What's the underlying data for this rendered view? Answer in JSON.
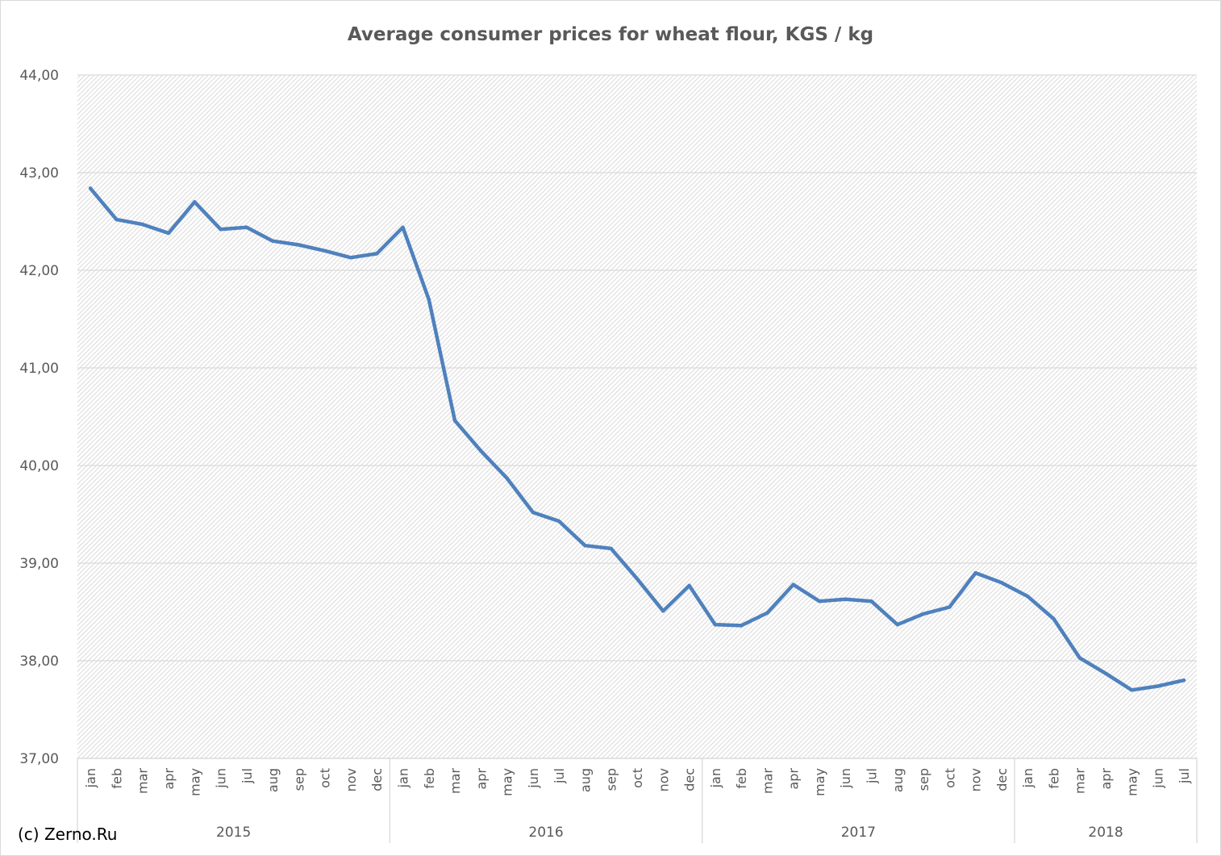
{
  "credit": "(c) Zerno.Ru",
  "colors": {
    "line": "#4f81bd",
    "text": "#595959",
    "grid": "#d9d9d9",
    "hatch": "#d0d0d0"
  },
  "chart_data": {
    "type": "line",
    "title": "Average consumer prices for wheat flour, KGS / kg",
    "xlabel": "",
    "ylabel": "",
    "ylim": [
      37,
      44
    ],
    "y_ticks": [
      "37,00",
      "38,00",
      "39,00",
      "40,00",
      "41,00",
      "42,00",
      "43,00",
      "44,00"
    ],
    "grid": true,
    "legend": "none",
    "years": [
      {
        "label": "2015",
        "months": [
          "jan",
          "feb",
          "mar",
          "apr",
          "may",
          "jun",
          "jul",
          "aug",
          "sep",
          "oct",
          "nov",
          "dec"
        ]
      },
      {
        "label": "2016",
        "months": [
          "jan",
          "feb",
          "mar",
          "apr",
          "may",
          "jun",
          "jul",
          "aug",
          "sep",
          "oct",
          "nov",
          "dec"
        ]
      },
      {
        "label": "2017",
        "months": [
          "jan",
          "feb",
          "mar",
          "apr",
          "may",
          "jun",
          "jul",
          "aug",
          "sep",
          "oct",
          "nov",
          "dec"
        ]
      },
      {
        "label": "2018",
        "months": [
          "jan",
          "feb",
          "mar",
          "apr",
          "may",
          "jun",
          "jul"
        ]
      }
    ],
    "series": [
      {
        "values": [
          42.84,
          42.52,
          42.47,
          42.38,
          42.7,
          42.42,
          42.44,
          42.3,
          42.26,
          42.2,
          42.13,
          42.17,
          42.44,
          41.7,
          40.46,
          40.15,
          39.87,
          39.52,
          39.43,
          39.18,
          39.15,
          38.84,
          38.51,
          38.77,
          38.37,
          38.36,
          38.49,
          38.78,
          38.61,
          38.63,
          38.61,
          38.37,
          38.48,
          38.55,
          38.9,
          38.8,
          38.66,
          38.43,
          38.03,
          37.87,
          37.7,
          37.74,
          37.8
        ]
      }
    ]
  }
}
